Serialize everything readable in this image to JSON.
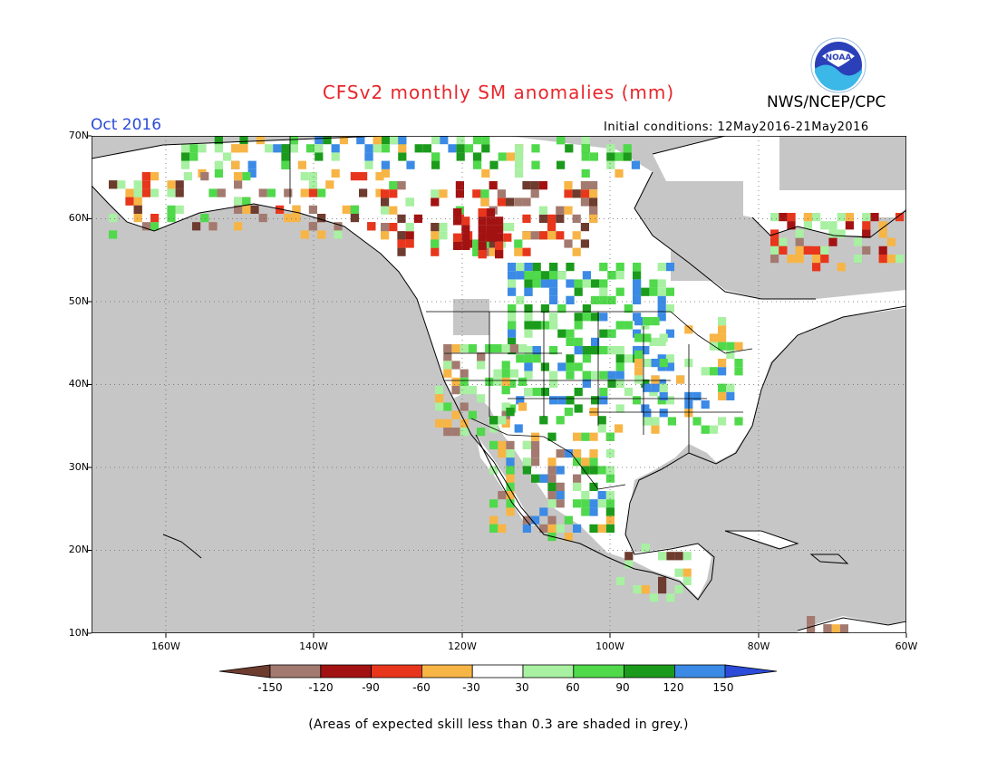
{
  "header": {
    "title": "CFSv2 monthly SM anomalies (mm)",
    "agency": "NWS/NCEP/CPC",
    "logo_text": "NOAA",
    "period": "Oct 2016",
    "initial_conditions": "Initial conditions: 12May2016-21May2016"
  },
  "map": {
    "lat_labels": [
      "70N",
      "60N",
      "50N",
      "40N",
      "30N",
      "20N",
      "10N"
    ],
    "lon_labels": [
      "160W",
      "140W",
      "120W",
      "100W",
      "80W",
      "60W"
    ],
    "background_color": "#c6c6c6"
  },
  "colorbar": {
    "levels": [
      "-150",
      "-120",
      "-90",
      "-60",
      "-30",
      "30",
      "60",
      "90",
      "120",
      "150"
    ],
    "colors": [
      "#6e3b2f",
      "#a37a70",
      "#a31212",
      "#e8361c",
      "#f7b546",
      "#ffffff",
      "#a8f0a2",
      "#4fd94b",
      "#1b9b1b",
      "#3b8ae6",
      "#2b4bd8"
    ]
  },
  "note": "(Areas of expected skill less than 0.3 are shaded in grey.)"
}
